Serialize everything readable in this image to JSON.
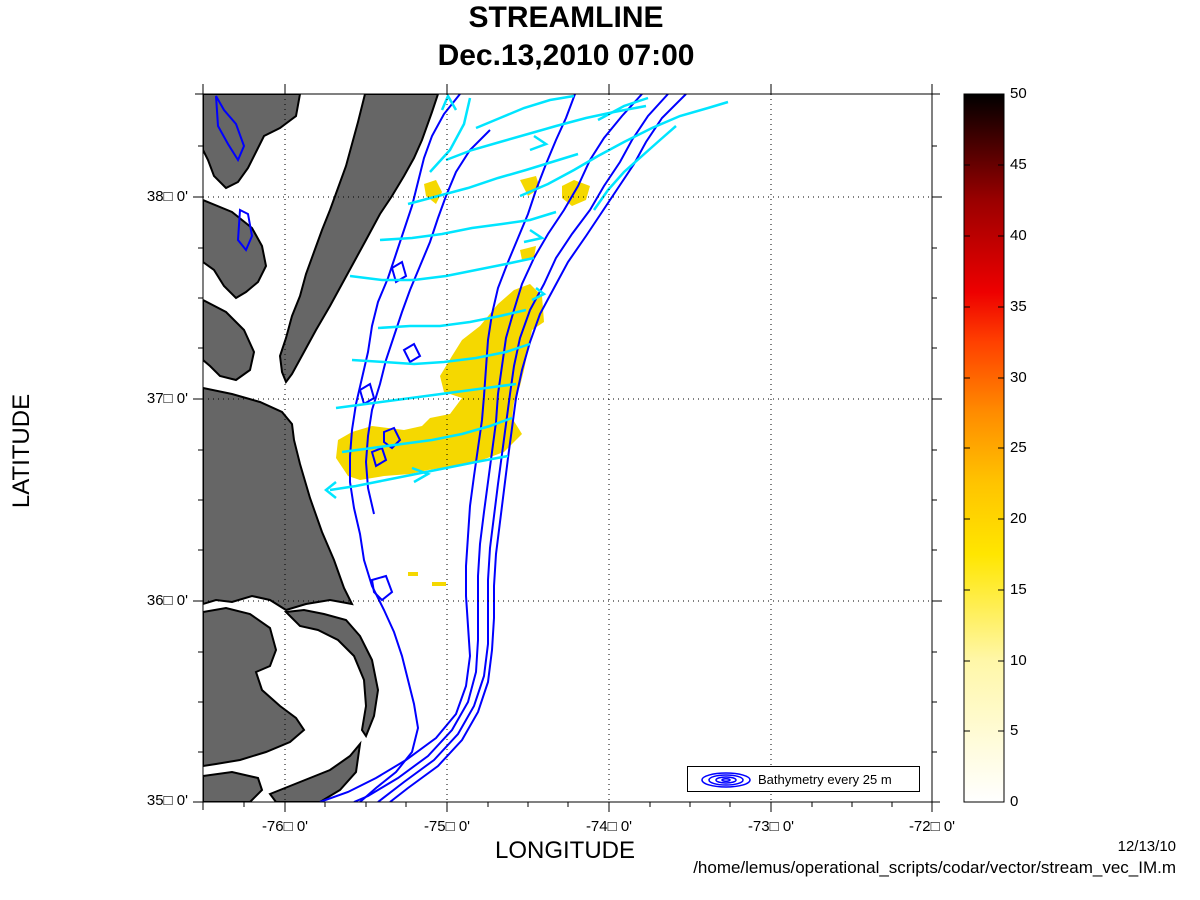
{
  "title": {
    "line1": "STREAMLINE",
    "line2": "Dec.13,2010 07:00"
  },
  "axes": {
    "xlabel": "LONGITUDE",
    "ylabel": "LATITUDE",
    "lon_range": [
      -76.5,
      -72
    ],
    "lat_range": [
      35,
      38.5
    ],
    "x_ticks": [
      {
        "lon": -76,
        "label": "-76□ 0'"
      },
      {
        "lon": -75,
        "label": "-75□ 0'"
      },
      {
        "lon": -74,
        "label": "-74□ 0'"
      },
      {
        "lon": -73,
        "label": "-73□ 0'"
      },
      {
        "lon": -72,
        "label": "-72□ 0'"
      }
    ],
    "y_ticks": [
      {
        "lat": 38,
        "label": "38□ 0'"
      },
      {
        "lat": 37,
        "label": "37□ 0'"
      },
      {
        "lat": 36,
        "label": "36□ 0'"
      },
      {
        "lat": 35,
        "label": "35□ 0'"
      }
    ],
    "grid": true
  },
  "colorbar": {
    "range": [
      0,
      50
    ],
    "ticks": [
      "50",
      "45",
      "40",
      "35",
      "30",
      "25",
      "20",
      "15",
      "10",
      "5",
      "0"
    ],
    "colormap": "hot-reversed"
  },
  "legend": {
    "label": "Bathymetry every 25 m",
    "icon": "bathymetry-contour-icon",
    "placement": "bottom-right"
  },
  "colors": {
    "land": "#666666",
    "coast": "#000000",
    "bathymetry": "#0000ff",
    "streamline": "#00e5ff",
    "speed_patch": "#f5d800"
  },
  "footer": {
    "date": "12/13/10",
    "script_path": "/home/lemus/operational_scripts/codar/vector/stream_vec_IM.m"
  }
}
